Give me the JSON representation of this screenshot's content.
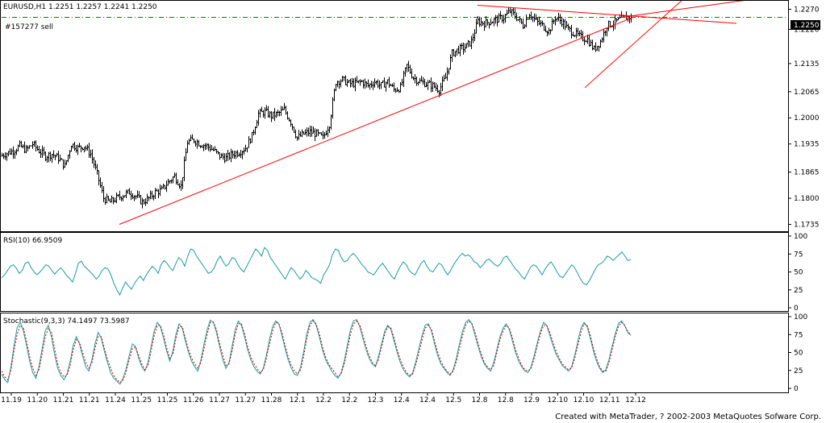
{
  "chart_data": [
    {
      "type": "candlestick",
      "panel": "price",
      "header": "EURUSD,H1  1.2251 1.2257 1.2241 1.2250",
      "order_label": "#157277 sell",
      "order_level": 1.225,
      "current_price_label": "1.2250",
      "y_ticks": [
        "1.2270",
        "1.2220",
        "1.2135",
        "1.2065",
        "1.2000",
        "1.1935",
        "1.1865",
        "1.1800",
        "1.1735"
      ],
      "ylim": [
        1.172,
        1.2285
      ],
      "close_path": [
        [
          0,
          1.1905
        ],
        [
          8,
          1.1912
        ],
        [
          16,
          1.1918
        ],
        [
          24,
          1.193
        ],
        [
          32,
          1.192
        ],
        [
          40,
          1.1935
        ],
        [
          48,
          1.1918
        ],
        [
          56,
          1.1905
        ],
        [
          64,
          1.191
        ],
        [
          72,
          1.19
        ],
        [
          80,
          1.188
        ],
        [
          88,
          1.1935
        ],
        [
          96,
          1.1925
        ],
        [
          104,
          1.193
        ],
        [
          112,
          1.191
        ],
        [
          120,
          1.186
        ],
        [
          128,
          1.18
        ],
        [
          136,
          1.179
        ],
        [
          144,
          1.18
        ],
        [
          152,
          1.1808
        ],
        [
          160,
          1.1815
        ],
        [
          168,
          1.1805
        ],
        [
          176,
          1.179
        ],
        [
          184,
          1.18
        ],
        [
          192,
          1.1815
        ],
        [
          200,
          1.182
        ],
        [
          208,
          1.184
        ],
        [
          216,
          1.1855
        ],
        [
          224,
          1.183
        ],
        [
          232,
          1.194
        ],
        [
          240,
          1.1945
        ],
        [
          248,
          1.1935
        ],
        [
          256,
          1.193
        ],
        [
          264,
          1.192
        ],
        [
          272,
          1.1905
        ],
        [
          280,
          1.19
        ],
        [
          288,
          1.191
        ],
        [
          296,
          1.1915
        ],
        [
          304,
          1.1925
        ],
        [
          312,
          1.1955
        ],
        [
          320,
          1.201
        ],
        [
          328,
          1.2015
        ],
        [
          336,
          1.2005
        ],
        [
          344,
          1.201
        ],
        [
          352,
          1.202
        ],
        [
          360,
          1.199
        ],
        [
          368,
          1.195
        ],
        [
          376,
          1.196
        ],
        [
          384,
          1.1965
        ],
        [
          392,
          1.196
        ],
        [
          400,
          1.195
        ],
        [
          408,
          1.1985
        ],
        [
          416,
          1.209
        ],
        [
          424,
          1.2095
        ],
        [
          432,
          1.2085
        ],
        [
          440,
          1.2085
        ],
        [
          448,
          1.209
        ],
        [
          456,
          1.208
        ],
        [
          464,
          1.209
        ],
        [
          472,
          1.208
        ],
        [
          480,
          1.209
        ],
        [
          488,
          1.207
        ],
        [
          496,
          1.2075
        ],
        [
          504,
          1.213
        ],
        [
          512,
          1.21
        ],
        [
          520,
          1.209
        ],
        [
          528,
          1.2085
        ],
        [
          536,
          1.208
        ],
        [
          544,
          1.207
        ],
        [
          552,
          1.21
        ],
        [
          560,
          1.216
        ],
        [
          568,
          1.217
        ],
        [
          576,
          1.2175
        ],
        [
          584,
          1.219
        ],
        [
          592,
          1.224
        ],
        [
          600,
          1.2235
        ],
        [
          608,
          1.224
        ],
        [
          616,
          1.2245
        ],
        [
          624,
          1.225
        ],
        [
          632,
          1.2265
        ],
        [
          640,
          1.225
        ],
        [
          648,
          1.223
        ],
        [
          656,
          1.226
        ],
        [
          664,
          1.224
        ],
        [
          672,
          1.223
        ],
        [
          680,
          1.2215
        ],
        [
          688,
          1.225
        ],
        [
          696,
          1.224
        ],
        [
          704,
          1.222
        ],
        [
          712,
          1.221
        ],
        [
          720,
          1.22
        ],
        [
          728,
          1.2195
        ],
        [
          736,
          1.217
        ],
        [
          744,
          1.219
        ],
        [
          752,
          1.223
        ],
        [
          760,
          1.2235
        ],
        [
          768,
          1.2245
        ],
        [
          776,
          1.225
        ],
        [
          782,
          1.225
        ]
      ],
      "trendlines": [
        {
          "from": [
            148,
            1.1735
          ],
          "to": [
            785,
            1.225
          ],
          "color": "#ff0000"
        },
        {
          "from": [
            592,
            1.228
          ],
          "to": [
            913,
            1.2235
          ],
          "color": "#ff0000"
        },
        {
          "from": [
            725,
            1.2075
          ],
          "to": [
            858,
            1.2315
          ],
          "color": "#ff0000"
        },
        {
          "from": [
            770,
            1.225
          ],
          "to": [
            1024,
            1.232
          ],
          "color": "#ff0000"
        }
      ],
      "order_line_color": "#008000",
      "color": "#000000"
    },
    {
      "type": "line",
      "panel": "rsi",
      "header": "RSI(10)  66.9509",
      "y_ticks": [
        "100",
        "75",
        "50",
        "25",
        "0"
      ],
      "ylim": [
        0,
        100
      ],
      "color": "#1a9c9c",
      "values": [
        42,
        46,
        52,
        58,
        60,
        55,
        48,
        52,
        62,
        64,
        56,
        50,
        46,
        50,
        55,
        60,
        58,
        52,
        47,
        52,
        56,
        51,
        45,
        41,
        36,
        48,
        62,
        65,
        58,
        54,
        50,
        46,
        40,
        44,
        52,
        56,
        54,
        46,
        34,
        25,
        18,
        28,
        36,
        30,
        26,
        34,
        40,
        44,
        38,
        46,
        52,
        58,
        54,
        48,
        60,
        66,
        62,
        56,
        52,
        62,
        70,
        66,
        58,
        72,
        82,
        80,
        72,
        66,
        60,
        54,
        48,
        50,
        56,
        66,
        72,
        64,
        58,
        62,
        70,
        68,
        60,
        54,
        50,
        58,
        66,
        74,
        82,
        78,
        72,
        84,
        80,
        70,
        64,
        58,
        52,
        46,
        40,
        48,
        56,
        52,
        46,
        40,
        44,
        52,
        48,
        42,
        40,
        38,
        34,
        46,
        52,
        60,
        74,
        82,
        80,
        70,
        64,
        66,
        72,
        76,
        72,
        66,
        60,
        56,
        50,
        48,
        46,
        52,
        58,
        62,
        56,
        50,
        44,
        40,
        50,
        58,
        64,
        60,
        52,
        48,
        46,
        54,
        62,
        66,
        58,
        52,
        50,
        56,
        62,
        60,
        52,
        46,
        52,
        60,
        66,
        72,
        76,
        72,
        74,
        70,
        64,
        62,
        56,
        60,
        66,
        68,
        64,
        60,
        58,
        62,
        70,
        72,
        66,
        60,
        54,
        50,
        44,
        40,
        48,
        56,
        60,
        58,
        52,
        46,
        54,
        60,
        64,
        58,
        50,
        44,
        42,
        48,
        54,
        60,
        56,
        48,
        40,
        34,
        32,
        38,
        46,
        54,
        60,
        62,
        66,
        72,
        70,
        66,
        70,
        74,
        78,
        72,
        66,
        67
      ]
    },
    {
      "type": "line",
      "panel": "stochastic",
      "header": "Stochastic(9,3,3)  74.1497  73.5987",
      "y_ticks": [
        "100",
        "75",
        "50",
        "25",
        "0"
      ],
      "ylim": [
        0,
        100
      ],
      "series": [
        {
          "color": "#1a9c9c",
          "values": [
            20,
            12,
            8,
            30,
            60,
            85,
            92,
            80,
            60,
            38,
            22,
            14,
            30,
            55,
            80,
            88,
            72,
            48,
            28,
            18,
            12,
            20,
            38,
            60,
            72,
            62,
            45,
            30,
            24,
            40,
            62,
            78,
            70,
            52,
            36,
            22,
            14,
            10,
            6,
            14,
            28,
            46,
            62,
            58,
            42,
            30,
            24,
            36,
            58,
            80,
            92,
            86,
            70,
            52,
            38,
            52,
            76,
            90,
            84,
            66,
            50,
            38,
            30,
            24,
            40,
            62,
            82,
            95,
            92,
            78,
            58,
            40,
            28,
            36,
            58,
            82,
            94,
            88,
            72,
            54,
            40,
            30,
            24,
            20,
            28,
            46,
            68,
            86,
            94,
            90,
            74,
            56,
            40,
            28,
            20,
            18,
            30,
            52,
            76,
            92,
            96,
            88,
            72,
            54,
            40,
            32,
            24,
            18,
            14,
            22,
            38,
            60,
            82,
            94,
            96,
            86,
            70,
            54,
            42,
            34,
            30,
            44,
            62,
            80,
            88,
            82,
            66,
            50,
            36,
            26,
            20,
            16,
            22,
            38,
            56,
            74,
            88,
            90,
            80,
            62,
            46,
            34,
            28,
            22,
            18,
            26,
            42,
            62,
            80,
            92,
            96,
            90,
            74,
            58,
            44,
            34,
            28,
            24,
            36,
            54,
            72,
            84,
            90,
            82,
            66,
            50,
            38,
            30,
            24,
            22,
            30,
            46,
            64,
            80,
            92,
            88,
            74,
            60,
            48,
            40,
            32,
            28,
            24,
            30,
            46,
            66,
            84,
            92,
            86,
            70,
            52,
            38,
            28,
            22,
            26,
            40,
            58,
            76,
            90,
            94,
            88,
            78,
            74
          ]
        },
        {
          "color": "#cc0000",
          "values": [
            24,
            16,
            12,
            26,
            52,
            76,
            88,
            84,
            66,
            44,
            28,
            18,
            26,
            48,
            72,
            84,
            78,
            56,
            34,
            22,
            16,
            18,
            32,
            54,
            68,
            64,
            50,
            36,
            28,
            36,
            56,
            72,
            72,
            56,
            40,
            28,
            18,
            12,
            8,
            12,
            24,
            40,
            56,
            58,
            46,
            34,
            26,
            32,
            52,
            74,
            88,
            88,
            74,
            56,
            42,
            48,
            70,
            86,
            86,
            70,
            54,
            42,
            34,
            28,
            36,
            56,
            76,
            92,
            92,
            82,
            62,
            46,
            32,
            34,
            52,
            76,
            90,
            90,
            76,
            58,
            44,
            34,
            28,
            22,
            26,
            42,
            62,
            80,
            92,
            90,
            78,
            60,
            44,
            32,
            24,
            20,
            26,
            46,
            70,
            88,
            94,
            90,
            76,
            58,
            44,
            34,
            28,
            22,
            16,
            20,
            34,
            54,
            76,
            90,
            94,
            88,
            74,
            58,
            46,
            36,
            32,
            40,
            58,
            76,
            86,
            84,
            70,
            54,
            40,
            30,
            22,
            18,
            20,
            34,
            50,
            68,
            84,
            88,
            82,
            66,
            50,
            38,
            30,
            24,
            20,
            24,
            38,
            56,
            74,
            88,
            94,
            90,
            78,
            62,
            48,
            36,
            30,
            26,
            32,
            50,
            68,
            80,
            88,
            84,
            70,
            54,
            42,
            32,
            26,
            24,
            28,
            42,
            60,
            76,
            88,
            88,
            78,
            64,
            52,
            42,
            34,
            30,
            26,
            28,
            42,
            60,
            78,
            90,
            88,
            74,
            56,
            42,
            30,
            24,
            24,
            36,
            54,
            72,
            86,
            92,
            88,
            80,
            74
          ]
        }
      ]
    },
    {
      "type": "axis",
      "panel": "time",
      "x_labels": [
        "11.19",
        "11.20",
        "11.21",
        "11.21",
        "11.24",
        "11.25",
        "11.25",
        "11.26",
        "11.27",
        "11.27",
        "11.28",
        "12.1",
        "12.2",
        "12.2",
        "12.3",
        "12.4",
        "12.4",
        "12.5",
        "12.8",
        "12.8",
        "12.9",
        "12.10",
        "12.10",
        "12.11",
        "12.12"
      ]
    }
  ],
  "footer": "Created with MetaTrader, ? 2002-2003 MetaQuotes Sofware Corp.",
  "rsi_levels": [
    "100",
    "75",
    "50",
    "25",
    "0"
  ],
  "stoch_levels": [
    "100",
    "75",
    "50",
    "25",
    "0"
  ]
}
